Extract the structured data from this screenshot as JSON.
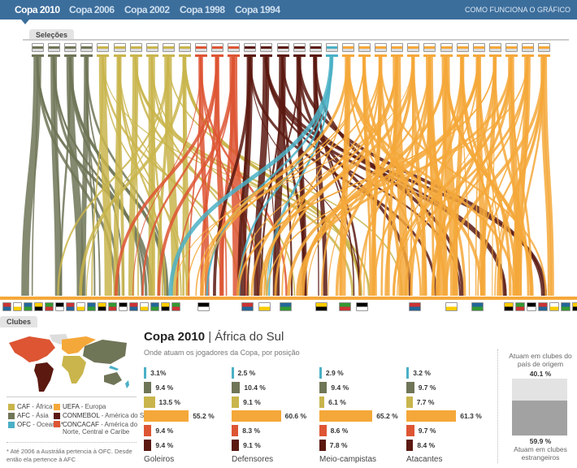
{
  "header": {
    "tabs": [
      "Copa 2010",
      "Copa 2006",
      "Copa 2002",
      "Copa 1998",
      "Copa 1994"
    ],
    "active_tab": "Copa 2010",
    "how_link": "COMO FUNCIONA O GRÁFICO"
  },
  "selecoes_label": "Seleções",
  "clubes_label": "Clubes",
  "colors": {
    "CAF": "#c9b54c",
    "AFC": "#6f7557",
    "OFC": "#4ab0c6",
    "UEFA": "#f5a83a",
    "CONMEBOL": "#5b1910",
    "CONCACAF": "#dd5533"
  },
  "teams": [
    {
      "icon": "australia-flag",
      "conf": "AFC"
    },
    {
      "icon": "north-korea-flag",
      "conf": "AFC"
    },
    {
      "icon": "south-korea-flag",
      "conf": "AFC"
    },
    {
      "icon": "japan-flag",
      "conf": "AFC"
    },
    {
      "icon": "south-africa-flag",
      "conf": "CAF"
    },
    {
      "icon": "algeria-flag",
      "conf": "CAF"
    },
    {
      "icon": "cameroon-flag",
      "conf": "CAF"
    },
    {
      "icon": "ivory-coast-flag",
      "conf": "CAF"
    },
    {
      "icon": "ghana-flag",
      "conf": "CAF"
    },
    {
      "icon": "nigeria-flag",
      "conf": "CAF"
    },
    {
      "icon": "honduras-flag",
      "conf": "CONCACAF"
    },
    {
      "icon": "mexico-flag",
      "conf": "CONCACAF"
    },
    {
      "icon": "usa-flag",
      "conf": "CONCACAF"
    },
    {
      "icon": "argentina-flag",
      "conf": "CONMEBOL"
    },
    {
      "icon": "brazil-flag",
      "conf": "CONMEBOL"
    },
    {
      "icon": "chile-flag",
      "conf": "CONMEBOL"
    },
    {
      "icon": "paraguay-flag",
      "conf": "CONMEBOL"
    },
    {
      "icon": "uruguay-flag",
      "conf": "CONMEBOL"
    },
    {
      "icon": "new-zealand-flag",
      "conf": "OFC"
    },
    {
      "icon": "germany-flag",
      "conf": "UEFA"
    },
    {
      "icon": "denmark-flag",
      "conf": "UEFA"
    },
    {
      "icon": "slovakia-flag",
      "conf": "UEFA"
    },
    {
      "icon": "slovenia-flag",
      "conf": "UEFA"
    },
    {
      "icon": "spain-flag",
      "conf": "UEFA"
    },
    {
      "icon": "france-flag",
      "conf": "UEFA"
    },
    {
      "icon": "greece-flag",
      "conf": "UEFA"
    },
    {
      "icon": "netherlands-flag",
      "conf": "UEFA"
    },
    {
      "icon": "england-flag",
      "conf": "UEFA"
    },
    {
      "icon": "italy-flag",
      "conf": "UEFA"
    },
    {
      "icon": "portugal-flag",
      "conf": "UEFA"
    },
    {
      "icon": "serbia-flag",
      "conf": "UEFA"
    },
    {
      "icon": "switzerland-flag",
      "conf": "UEFA"
    }
  ],
  "legend": [
    {
      "conf": "CAF",
      "label": "CAF",
      "desc": " - África"
    },
    {
      "conf": "AFC",
      "label": "AFC",
      "desc": " - Ásia"
    },
    {
      "conf": "OFC",
      "label": "OFC",
      "desc": " - Oceania*"
    },
    {
      "conf": "UEFA",
      "label": "UEFA",
      "desc": " - Europa"
    },
    {
      "conf": "CONMEBOL",
      "label": "CONMEBOL",
      "desc": " - América do Sul"
    },
    {
      "conf": "CONCACAF",
      "label": "CONCACAF",
      "desc": " - América do Norte, Central e Caribe"
    }
  ],
  "note": "* Até 2006 a Austrália pertencia à OFC. Desde então ela pertence à AFC",
  "summary": {
    "title": "Copa 2010",
    "title_sep": " | ",
    "subtitle_place": "África do Sul",
    "subtitle": "Onde atuam os jogadores da Copa, por posição"
  },
  "bar_order": [
    "OFC",
    "AFC",
    "CAF",
    "UEFA",
    "CONCACAF",
    "CONMEBOL"
  ],
  "positions": [
    {
      "name": "Goleiros",
      "values": [
        3.1,
        9.4,
        13.5,
        55.2,
        9.4,
        9.4
      ],
      "labels": [
        "3.1%",
        "9.4 %",
        "13.5 %",
        "55.2 %",
        "9.4 %",
        "9.4 %"
      ]
    },
    {
      "name": "Defensores",
      "values": [
        2.5,
        10.4,
        9.1,
        60.6,
        8.3,
        9.1
      ],
      "labels": [
        "2.5 %",
        "10.4 %",
        "9.1 %",
        "60.6 %",
        "8.3 %",
        "9.1 %"
      ]
    },
    {
      "name": "Meio-campistas",
      "values": [
        2.9,
        9.4,
        6.1,
        65.2,
        8.6,
        7.8
      ],
      "labels": [
        "2.9 %",
        "9.4 %",
        "6.1 %",
        "65.2 %",
        "8.6 %",
        "7.8 %"
      ]
    },
    {
      "name": "Atacantes",
      "values": [
        3.2,
        9.7,
        7.7,
        61.3,
        9.7,
        8.4
      ],
      "labels": [
        "3.2 %",
        "9.7 %",
        "7.7 %",
        "61.3 %",
        "9.7 %",
        "8.4 %"
      ]
    }
  ],
  "origin": {
    "home_label": "Atuam em clubes do país de origem",
    "home_pct": "40.1 %",
    "abroad_pct": "59.9 %",
    "abroad_label": "Atuam em clubes estrangeiros"
  }
}
